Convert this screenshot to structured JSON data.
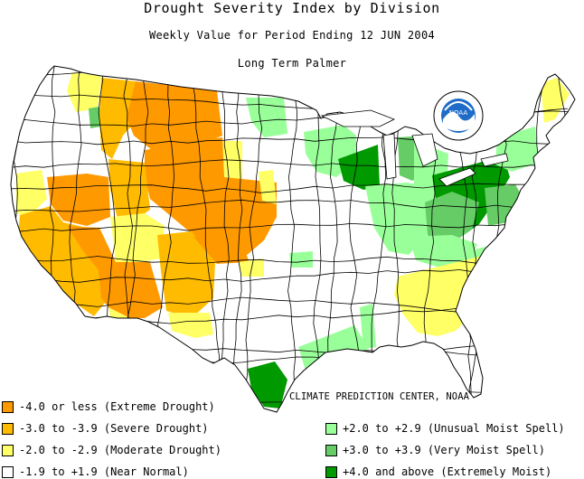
{
  "title": "Drought Severity Index by Division",
  "subtitle": "Weekly Value for Period Ending 12 JUN 2004",
  "index_name": "Long Term Palmer",
  "logo_text": "NOAA",
  "credit": "CLIMATE PREDICTION CENTER, NOAA",
  "colors": {
    "extreme_drought": "#FF9900",
    "severe_drought": "#FFBB00",
    "moderate_drought": "#FFFF66",
    "near_normal": "#FFFFFF",
    "unusual_moist": "#99FF99",
    "very_moist": "#66CC66",
    "extremely_moist": "#009900",
    "outline": "#000000"
  },
  "legend": [
    {
      "label": "-4.0 or less (Extreme Drought)",
      "color": "#FF9900"
    },
    {
      "label": "-3.0 to -3.9 (Severe Drought)",
      "color": "#FFBB00"
    },
    {
      "label": "-2.0 to -2.9 (Moderate Drought)",
      "color": "#FFFF66"
    },
    {
      "label": "-1.9 to +1.9 (Near Normal)",
      "color": "#FFFFFF"
    },
    {
      "label": "+2.0 to +2.9 (Unusual Moist Spell)",
      "color": "#99FF99"
    },
    {
      "label": "+3.0 to +3.9 (Very Moist Spell)",
      "color": "#66CC66"
    },
    {
      "label": "+4.0 and above (Extremely Moist)",
      "color": "#009900"
    }
  ]
}
